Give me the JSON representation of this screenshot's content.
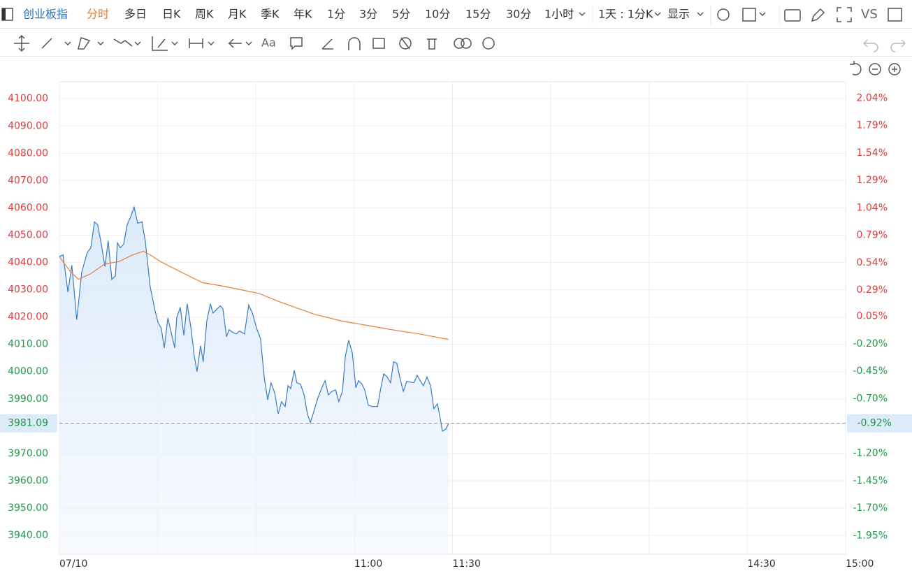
{
  "toolbar": {
    "symbol": "创业板指",
    "periods": [
      "分时",
      "多日",
      "日K",
      "周K",
      "月K",
      "季K",
      "年K",
      "1分",
      "3分",
      "5分",
      "10分",
      "15分",
      "30分",
      "1小时"
    ],
    "interval": "1天 : 1分K",
    "display": "显示",
    "compare": "VS"
  },
  "drawing_tools": {
    "text": "Aa"
  },
  "chart_data": {
    "type": "line",
    "grid": true,
    "up_color": "#e03a3a",
    "down_color": "#1f9a48",
    "xlim": [
      0,
      240
    ],
    "xticks": [
      {
        "value": 0,
        "label": "07/10"
      },
      {
        "value": 30,
        "label": null
      },
      {
        "value": 60,
        "label": null
      },
      {
        "value": 90,
        "label": "11:00"
      },
      {
        "value": 120,
        "label": "11:30"
      },
      {
        "value": 150,
        "label": null
      },
      {
        "value": 180,
        "label": null
      },
      {
        "value": 210,
        "label": "14:30"
      },
      {
        "value": 240,
        "label": "15:00"
      }
    ],
    "ylim": [
      3933.1,
      4106.2
    ],
    "yticks": [
      {
        "value": 4100,
        "label": "4100.00"
      },
      {
        "value": 4090,
        "label": "4090.00"
      },
      {
        "value": 4080,
        "label": "4080.00"
      },
      {
        "value": 4070,
        "label": "4070.00"
      },
      {
        "value": 4060,
        "label": "4060.00"
      },
      {
        "value": 4050,
        "label": "4050.00"
      },
      {
        "value": 4040,
        "label": "4040.00"
      },
      {
        "value": 4030,
        "label": "4030.00"
      },
      {
        "value": 4020,
        "label": "4020.00"
      },
      {
        "value": 4010,
        "label": "4010.00"
      },
      {
        "value": 4000,
        "label": "4000.00"
      },
      {
        "value": 3990,
        "label": "3990.00"
      },
      {
        "value": 3970,
        "label": "3970.00"
      },
      {
        "value": 3960,
        "label": "3960.00"
      },
      {
        "value": 3950,
        "label": "3950.00"
      },
      {
        "value": 3940,
        "label": "3940.00"
      }
    ],
    "y2lim": [
      -2.12,
      2.19
    ],
    "y2ticks": [
      {
        "value": 2.04,
        "label": "2.04%"
      },
      {
        "value": 1.79,
        "label": "1.79%"
      },
      {
        "value": 1.54,
        "label": "1.54%"
      },
      {
        "value": 1.29,
        "label": "1.29%"
      },
      {
        "value": 1.04,
        "label": "1.04%"
      },
      {
        "value": 0.79,
        "label": "0.79%"
      },
      {
        "value": 0.54,
        "label": "0.54%"
      },
      {
        "value": 0.29,
        "label": "0.29%"
      },
      {
        "value": 0.05,
        "label": "0.05%"
      },
      {
        "value": -0.2,
        "label": "-0.20%"
      },
      {
        "value": -0.45,
        "label": "-0.45%"
      },
      {
        "value": -0.7,
        "label": "-0.70%"
      },
      {
        "value": -1.2,
        "label": "-1.20%"
      },
      {
        "value": -1.45,
        "label": "-1.45%"
      },
      {
        "value": -1.7,
        "label": "-1.70%"
      },
      {
        "value": -1.95,
        "label": "-1.95%"
      }
    ],
    "last": {
      "value": 3981.09,
      "label": "3981.09",
      "change": -0.92,
      "change_label": "-0.92%",
      "color": "#e0803a"
    },
    "series": [
      {
        "color": "#3a7bbf",
        "fill": "#dcebfb",
        "x": [
          0,
          1.1,
          2.6,
          3.8,
          5.3,
          6.8,
          8.5,
          9.6,
          10.7,
          11.7,
          12.8,
          13.9,
          14.9,
          16.0,
          17.1,
          17.7,
          18.6,
          19.6,
          20.7,
          21.8,
          22.8,
          23.9,
          25.2,
          26.2,
          27.7,
          29.2,
          30.1,
          31.1,
          32.0,
          33.1,
          34.1,
          35.2,
          35.8,
          36.9,
          38.0,
          39.0,
          40.1,
          41.2,
          42.0,
          43.1,
          43.9,
          45.0,
          46.1,
          46.9,
          48.0,
          49.1,
          49.9,
          51.0,
          51.8,
          52.9,
          54.0,
          55.0,
          56.5,
          57.8,
          58.9,
          60.2,
          61.4,
          62.5,
          63.6,
          64.6,
          65.7,
          66.8,
          67.8,
          68.9,
          69.8,
          70.6,
          71.7,
          72.5,
          73.6,
          74.7,
          75.7,
          76.6,
          77.9,
          78.9,
          80.0,
          81.1,
          82.1,
          83.2,
          84.3,
          85.3,
          86.4,
          87.3,
          88.3,
          89.4,
          90.5,
          91.3,
          92.4,
          93.2,
          94.3,
          95.4,
          97.1,
          98.1,
          99.0,
          100.1,
          101.1,
          102.0,
          103.0,
          103.9,
          105.0,
          106.0,
          107.1,
          108.2,
          109.2,
          110.1,
          111.1,
          112.2,
          113.3,
          114.3,
          115.4,
          116.5,
          116.9,
          118.0,
          118.8
        ],
        "values": [
          4042.1,
          4042.8,
          4029.2,
          4039.0,
          4019.0,
          4036.4,
          4043.6,
          4045.4,
          4054.9,
          4053.8,
          4046.7,
          4038.5,
          4048.0,
          4033.8,
          4035.1,
          4047.2,
          4045.4,
          4046.7,
          4053.8,
          4056.9,
          4060.3,
          4054.4,
          4054.9,
          4048.0,
          4031.3,
          4022.3,
          4018.0,
          4015.9,
          4008.7,
          4019.7,
          4014.6,
          4008.7,
          4019.7,
          4023.6,
          4013.3,
          4024.9,
          4016.4,
          4005.6,
          4000.0,
          4009.5,
          4003.6,
          4018.5,
          4024.9,
          4021.5,
          4022.8,
          4024.1,
          4023.1,
          4012.8,
          4015.4,
          4014.4,
          4013.8,
          4014.9,
          4013.8,
          4024.4,
          4021.5,
          4015.9,
          4012.1,
          3998.0,
          3989.7,
          3995.9,
          3992.3,
          3984.6,
          3989.0,
          3987.2,
          3994.9,
          3993.8,
          4000.5,
          3995.9,
          3995.4,
          3991.5,
          3984.6,
          3981.3,
          3986.4,
          3990.3,
          3993.8,
          3996.7,
          3991.5,
          3992.8,
          3993.3,
          3989.0,
          3992.8,
          4005.6,
          4011.5,
          4006.9,
          3994.1,
          3996.7,
          3995.4,
          3993.3,
          3987.7,
          3987.2,
          3987.2,
          3993.8,
          3999.2,
          3998.0,
          3995.9,
          4003.6,
          4003.1,
          3998.0,
          3992.8,
          3996.4,
          3996.2,
          3995.9,
          3998.7,
          3996.7,
          3994.9,
          3998.0,
          3994.9,
          3986.4,
          3988.2,
          3981.3,
          3978.2,
          3979.0,
          3981.0
        ]
      },
      {
        "color": "#e0803a",
        "x": [
          0,
          3.2,
          5.8,
          9.6,
          13.9,
          18.1,
          22.4,
          25.6,
          27.7,
          30.9,
          37.3,
          43.7,
          50.1,
          60.8,
          67.2,
          77.9,
          86.4,
          92.8,
          101.3,
          109.9,
          118.8
        ],
        "values": [
          4042.1,
          4036.9,
          4033.8,
          4035.9,
          4039.5,
          4040.3,
          4042.8,
          4044.1,
          4042.8,
          4040.3,
          4036.4,
          4032.6,
          4031.3,
          4028.7,
          4025.6,
          4021.0,
          4018.5,
          4017.2,
          4015.4,
          4013.8,
          4011.8
        ]
      }
    ]
  }
}
